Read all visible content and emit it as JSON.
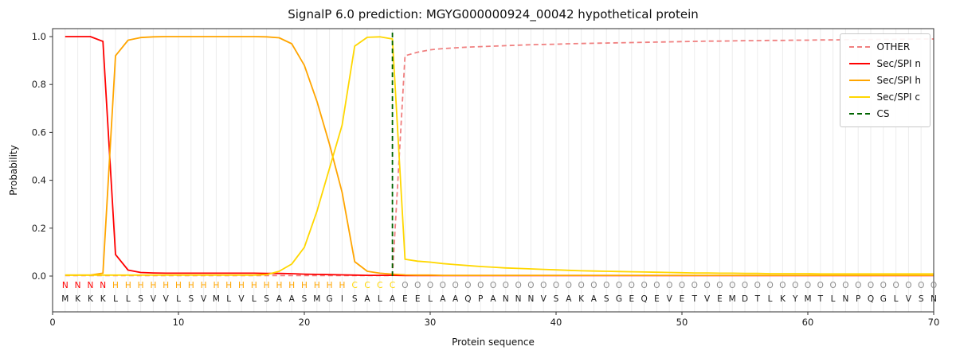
{
  "chart_data": {
    "type": "line",
    "title": "SignalP 6.0 prediction: MGYG000000924_00042 hypothetical protein",
    "xlabel": "Protein sequence",
    "ylabel": "Probability",
    "xlim": [
      0,
      70
    ],
    "ylim": [
      -0.15,
      1.05
    ],
    "xticks": [
      0,
      10,
      20,
      30,
      40,
      50,
      60,
      70
    ],
    "xtick_labels": [
      "0",
      "10",
      "20",
      "30",
      "40",
      "50",
      "60",
      "70"
    ],
    "yticks": [
      0.0,
      0.2,
      0.4,
      0.6,
      0.8,
      1.0
    ],
    "ytick_labels": [
      "0.0",
      "0.2",
      "0.4",
      "0.6",
      "0.8",
      "1.0"
    ],
    "grid": "vertical-per-residue",
    "legend_position": "upper right",
    "x_start": 1,
    "series": [
      {
        "id": "other",
        "name": "OTHER",
        "color": "#f08080",
        "dashed": true,
        "values": [
          0.002,
          0.002,
          0.002,
          0.002,
          0.002,
          0.002,
          0.002,
          0.002,
          0.002,
          0.002,
          0.002,
          0.002,
          0.002,
          0.002,
          0.002,
          0.002,
          0.002,
          0.002,
          0.002,
          0.002,
          0.002,
          0.002,
          0.002,
          0.002,
          0.002,
          0.002,
          0.002,
          0.92,
          0.935,
          0.945,
          0.95,
          0.953,
          0.956,
          0.958,
          0.96,
          0.962,
          0.964,
          0.966,
          0.967,
          0.968,
          0.97,
          0.971,
          0.972,
          0.973,
          0.974,
          0.975,
          0.976,
          0.977,
          0.978,
          0.979,
          0.98,
          0.981,
          0.981,
          0.982,
          0.983,
          0.983,
          0.984,
          0.984,
          0.985,
          0.985,
          0.986,
          0.986,
          0.987,
          0.987,
          0.988,
          0.988,
          0.989,
          0.989,
          0.99,
          0.99
        ]
      },
      {
        "id": "sec-spi-n",
        "name": "Sec/SPI n",
        "color": "#ff0000",
        "dashed": false,
        "values": [
          1.0,
          1.0,
          1.0,
          0.98,
          0.09,
          0.025,
          0.015,
          0.013,
          0.012,
          0.012,
          0.012,
          0.012,
          0.012,
          0.012,
          0.012,
          0.012,
          0.011,
          0.011,
          0.01,
          0.008,
          0.007,
          0.006,
          0.005,
          0.004,
          0.003,
          0.003,
          0.003,
          0.002,
          0.002,
          0.002,
          0.002,
          0.002,
          0.002,
          0.002,
          0.002,
          0.002,
          0.002,
          0.002,
          0.002,
          0.002,
          0.002,
          0.002,
          0.002,
          0.002,
          0.002,
          0.002,
          0.002,
          0.002,
          0.002,
          0.002,
          0.002,
          0.002,
          0.002,
          0.002,
          0.002,
          0.002,
          0.002,
          0.002,
          0.002,
          0.002,
          0.002,
          0.002,
          0.002,
          0.002,
          0.002,
          0.002,
          0.002,
          0.002,
          0.002,
          0.002
        ]
      },
      {
        "id": "sec-spi-h",
        "name": "Sec/SPI h",
        "color": "#ffa500",
        "dashed": false,
        "values": [
          0.004,
          0.004,
          0.004,
          0.012,
          0.92,
          0.985,
          0.996,
          0.999,
          1.0,
          1.0,
          1.0,
          1.0,
          1.0,
          1.0,
          1.0,
          1.0,
          0.999,
          0.995,
          0.97,
          0.88,
          0.73,
          0.55,
          0.35,
          0.06,
          0.02,
          0.012,
          0.008,
          0.005,
          0.004,
          0.004,
          0.003,
          0.003,
          0.003,
          0.003,
          0.003,
          0.003,
          0.003,
          0.003,
          0.003,
          0.003,
          0.003,
          0.003,
          0.003,
          0.003,
          0.003,
          0.003,
          0.003,
          0.003,
          0.003,
          0.003,
          0.003,
          0.003,
          0.003,
          0.003,
          0.003,
          0.003,
          0.003,
          0.003,
          0.003,
          0.003,
          0.003,
          0.003,
          0.003,
          0.003,
          0.003,
          0.003,
          0.003,
          0.003,
          0.003,
          0.003
        ]
      },
      {
        "id": "sec-spi-c",
        "name": "Sec/SPI c",
        "color": "#ffd700",
        "dashed": false,
        "values": [
          0.004,
          0.004,
          0.004,
          0.004,
          0.004,
          0.004,
          0.004,
          0.004,
          0.004,
          0.004,
          0.004,
          0.004,
          0.004,
          0.004,
          0.004,
          0.004,
          0.006,
          0.02,
          0.05,
          0.12,
          0.27,
          0.45,
          0.63,
          0.96,
          0.997,
          0.999,
          0.99,
          0.07,
          0.062,
          0.058,
          0.052,
          0.048,
          0.044,
          0.04,
          0.037,
          0.034,
          0.032,
          0.03,
          0.028,
          0.026,
          0.024,
          0.022,
          0.021,
          0.02,
          0.019,
          0.018,
          0.017,
          0.016,
          0.015,
          0.014,
          0.013,
          0.013,
          0.012,
          0.012,
          0.011,
          0.011,
          0.01,
          0.01,
          0.01,
          0.01,
          0.009,
          0.009,
          0.009,
          0.009,
          0.009,
          0.009,
          0.009,
          0.009,
          0.009,
          0.009
        ]
      }
    ],
    "cs_line": {
      "name": "CS",
      "x": 27,
      "color": "#006400",
      "dashed": true
    },
    "residues": {
      "region_labels": "NNNNHHHHHHHHHHHHHHHHHHHCCCCOOOOOOOOOOOOOOOOOOOOOOOOOOOOOOOOOOOOOOOOOOO",
      "sequence": "MKKKLLSVVLSVMLVLSAASMGISALAEELAAQPANNNVSAKASGEQEVETVEMDTLKYMTLNPQGLVSN",
      "label_colors": {
        "N": "#ff0000",
        "H": "#ffa500",
        "C": "#ffd700",
        "O": "#8c8c8c"
      },
      "sequence_color": "#1a1a1a"
    }
  }
}
